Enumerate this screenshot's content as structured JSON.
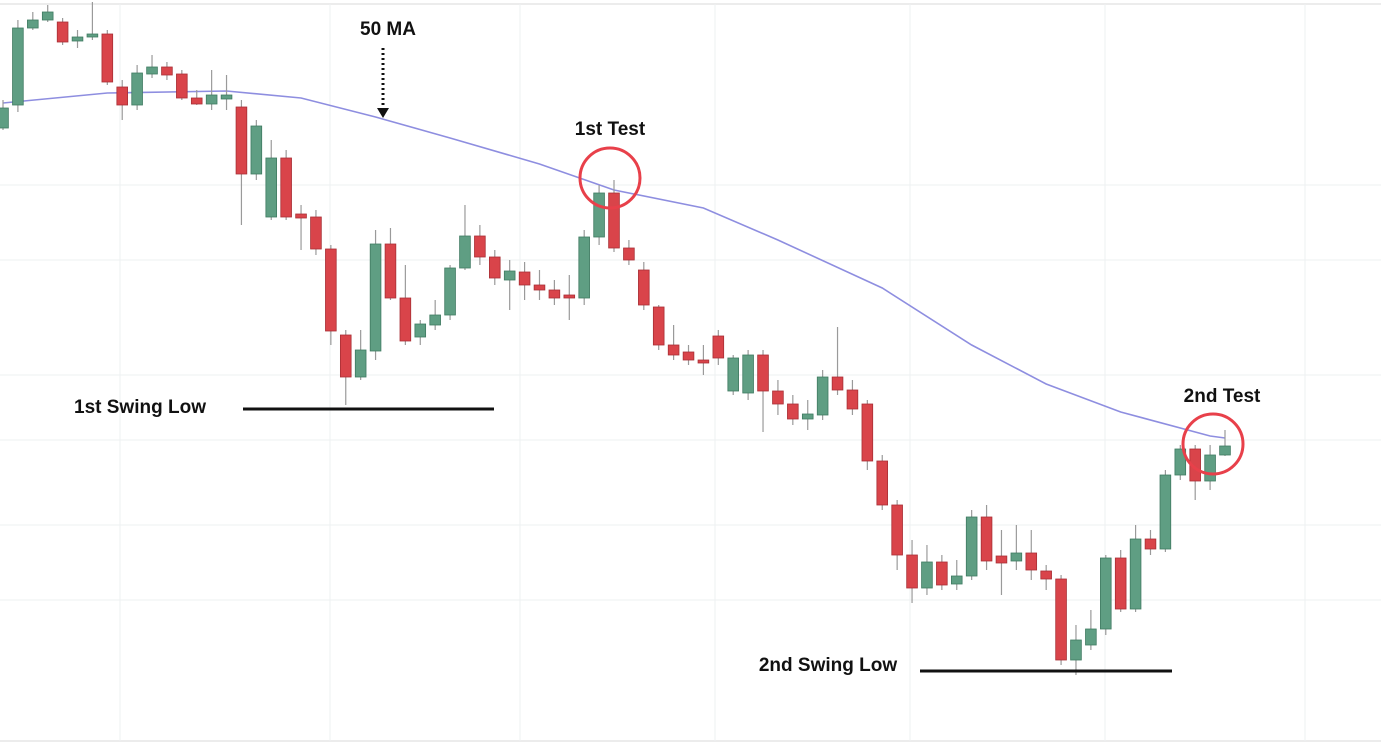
{
  "chart_data": {
    "type": "candlestick",
    "ylim": [
      0,
      745
    ],
    "up_color": "#5f9e83",
    "down_color": "#d9444a",
    "wick_color": "#9a9a9a",
    "open": [
      617,
      640,
      717,
      725,
      723,
      704,
      708,
      711,
      658,
      640,
      671,
      678,
      671,
      647,
      641,
      646,
      638,
      571,
      528,
      587,
      531,
      528,
      496,
      410,
      368,
      394,
      501,
      447,
      408,
      420,
      430,
      477,
      509,
      488,
      465,
      473,
      460,
      455,
      450,
      447,
      508,
      552,
      497,
      475,
      438,
      400,
      393,
      385,
      409,
      354,
      352,
      390,
      354,
      341,
      326,
      330,
      368,
      355,
      341,
      284,
      240,
      190,
      157,
      183,
      161,
      169,
      228,
      189,
      184,
      192,
      174,
      166,
      85,
      100,
      116,
      187,
      136,
      206,
      196,
      270,
      296,
      264,
      290
    ],
    "close": [
      637,
      717,
      725,
      733,
      703,
      708,
      711,
      663,
      640,
      672,
      678,
      670,
      647,
      641,
      650,
      650,
      571,
      619,
      587,
      528,
      527,
      496,
      414,
      368,
      395,
      501,
      447,
      404,
      421,
      430,
      477,
      509,
      488,
      467,
      474,
      460,
      455,
      447,
      447,
      508,
      552,
      497,
      485,
      440,
      400,
      390,
      385,
      382,
      387,
      387,
      390,
      354,
      341,
      326,
      331,
      368,
      355,
      336,
      284,
      240,
      190,
      157,
      183,
      160,
      169,
      228,
      184,
      182,
      192,
      175,
      166,
      85,
      105,
      116,
      187,
      136,
      206,
      196,
      270,
      296,
      264,
      290,
      299
    ],
    "high": [
      645,
      725,
      733,
      740,
      727,
      715,
      743,
      715,
      665,
      680,
      690,
      683,
      675,
      655,
      675,
      670,
      645,
      625,
      605,
      595,
      540,
      535,
      500,
      415,
      415,
      515,
      517,
      480,
      425,
      445,
      480,
      540,
      520,
      495,
      485,
      483,
      475,
      465,
      470,
      515,
      560,
      565,
      505,
      483,
      440,
      420,
      400,
      400,
      415,
      390,
      395,
      395,
      365,
      350,
      345,
      375,
      418,
      365,
      345,
      290,
      245,
      205,
      200,
      190,
      185,
      235,
      240,
      215,
      220,
      215,
      180,
      170,
      120,
      135,
      190,
      195,
      220,
      215,
      275,
      300,
      300,
      300,
      315
    ],
    "low": [
      615,
      633,
      715,
      723,
      700,
      697,
      705,
      660,
      625,
      635,
      667,
      665,
      645,
      640,
      635,
      635,
      520,
      565,
      525,
      525,
      495,
      490,
      400,
      340,
      365,
      385,
      445,
      400,
      400,
      415,
      425,
      475,
      480,
      460,
      435,
      445,
      445,
      440,
      425,
      440,
      500,
      493,
      480,
      435,
      395,
      385,
      380,
      370,
      380,
      350,
      345,
      313,
      330,
      320,
      315,
      325,
      350,
      330,
      275,
      235,
      175,
      142,
      150,
      155,
      155,
      165,
      175,
      150,
      175,
      165,
      155,
      80,
      70,
      95,
      110,
      133,
      133,
      190,
      193,
      265,
      245,
      255,
      289
    ],
    "ma": {
      "color": "#8e8ee0",
      "x": [
        0,
        7,
        15,
        20,
        25,
        30,
        36,
        41,
        47,
        52,
        59,
        65,
        70,
        75,
        81,
        82
      ],
      "values": [
        642,
        652,
        654,
        647,
        628,
        607,
        581,
        555,
        537,
        505,
        457,
        400,
        361,
        333,
        309,
        307
      ]
    },
    "annotations": [
      "50 MA",
      "1st Test",
      "2nd Test",
      "1st Swing Low",
      "2nd Swing Low"
    ]
  }
}
